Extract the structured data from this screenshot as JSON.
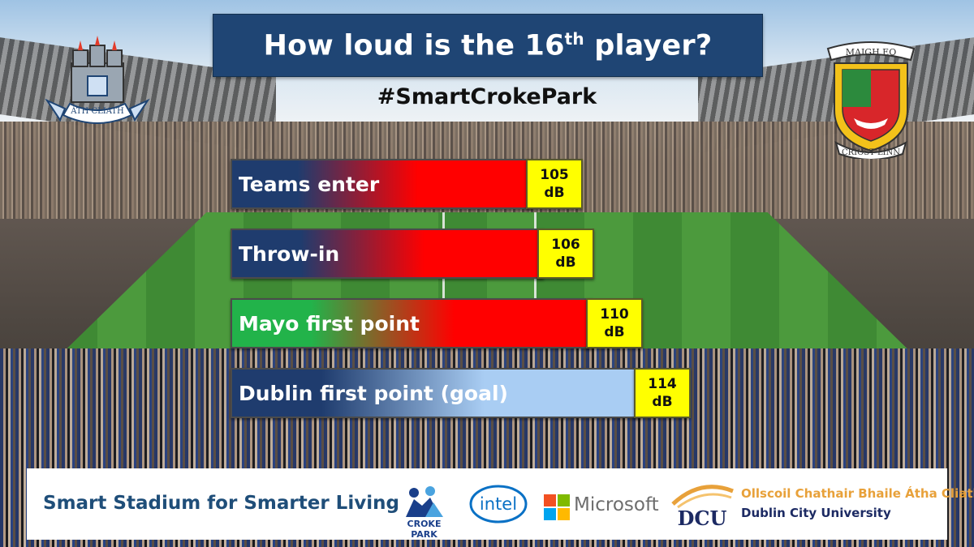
{
  "title": {
    "main": "How loud is the 16",
    "superscript": "th",
    "rest": " player?"
  },
  "hashtag": "#SmartCrokePark",
  "crests": {
    "left": {
      "icon": "dublin-crest-icon",
      "text": "ÁTH CLIATH"
    },
    "right": {
      "icon": "mayo-crest-icon",
      "text_top": "MAIGH EO",
      "text_bottom": "CRÍOST LINN"
    }
  },
  "chart_data": {
    "type": "bar",
    "orientation": "horizontal",
    "title": "How loud is the 16th player?",
    "unit": "dB",
    "categories": [
      "Teams enter",
      "Throw-in",
      "Mayo first point",
      "Dublin first point (goal)"
    ],
    "values": [
      105,
      106,
      110,
      114
    ],
    "value_labels": [
      {
        "value": "105",
        "unit": "dB"
      },
      {
        "value": "106",
        "unit": "dB"
      },
      {
        "value": "110",
        "unit": "dB"
      },
      {
        "value": "114",
        "unit": "dB"
      }
    ],
    "bar_fills": [
      [
        "#1f3c6e",
        "#ff0000"
      ],
      [
        "#1f3c6e",
        "#ff0000"
      ],
      [
        "#22b34a",
        "#ff0000"
      ],
      [
        "#1f3c6e",
        "#a9cdf3"
      ]
    ],
    "badge_color": "#ffff00",
    "xlim": [
      80,
      116
    ]
  },
  "footer": {
    "tagline": "Smart Stadium for Smarter Living",
    "logos": {
      "croke_park": "CROKE PARK",
      "intel": "intel",
      "microsoft": "Microsoft",
      "dcu_irish": "Ollscoil Chathair Bhaile Átha Cliath",
      "dcu_english": "Dublin City University",
      "dcu_mark": "DCU"
    }
  },
  "colors": {
    "title_bg": "#1f4574",
    "footer_text": "#1f4e79",
    "dcu_orange": "#e8a13a",
    "dcu_navy": "#1c2a63"
  }
}
